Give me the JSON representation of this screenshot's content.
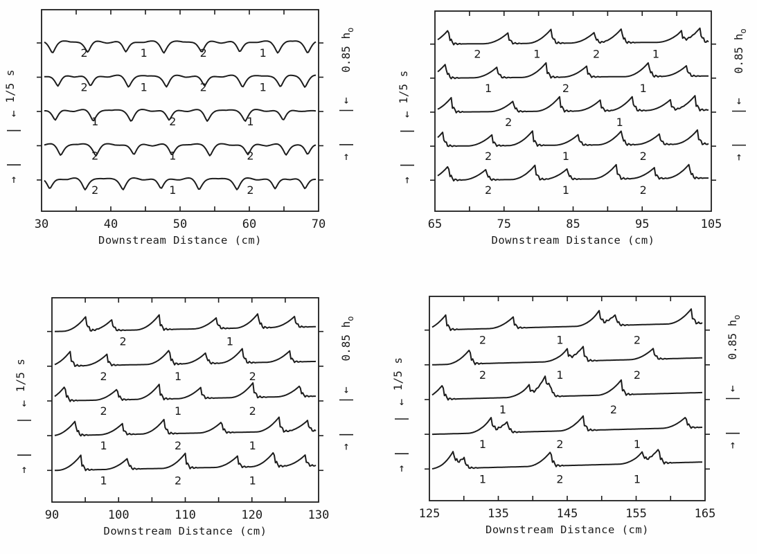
{
  "chart_data": [
    {
      "type": "line",
      "title": "",
      "xlabel": "Downstream Distance (cm)",
      "xlim": [
        30,
        70
      ],
      "x_ticks": [
        "30",
        "40",
        "50",
        "60",
        "70"
      ],
      "time_scale_label": "1/5 s",
      "height_scale_label": "0.85 h",
      "height_scale_sub": "o",
      "wave_labels": [
        [
          "2",
          "1",
          "2",
          "1"
        ],
        [
          "2",
          "1",
          "2",
          "1"
        ],
        [
          "1",
          "2",
          "1"
        ],
        [
          "2",
          "1",
          "2"
        ],
        [
          "2",
          "1",
          "2"
        ]
      ]
    },
    {
      "type": "line",
      "title": "",
      "xlabel": "Downstream Distance (cm)",
      "xlim": [
        65,
        105
      ],
      "x_ticks": [
        "65",
        "75",
        "85",
        "95",
        "105"
      ],
      "time_scale_label": "1/5 s",
      "height_scale_label": "0.85 h",
      "height_scale_sub": "o",
      "wave_labels": [
        [
          "2",
          "1",
          "2",
          "1"
        ],
        [
          "1",
          "2",
          "1"
        ],
        [
          "2",
          "1"
        ],
        [
          "2",
          "1",
          "2"
        ],
        [
          "2",
          "1",
          "2"
        ]
      ]
    },
    {
      "type": "line",
      "title": "",
      "xlabel": "Downstream Distance (cm)",
      "xlim": [
        90,
        130
      ],
      "x_ticks": [
        "90",
        "100",
        "110",
        "120",
        "130"
      ],
      "time_scale_label": "1/5 s",
      "height_scale_label": "0.85 h",
      "height_scale_sub": "o",
      "wave_labels": [
        [
          "2",
          "1"
        ],
        [
          "2",
          "1",
          "2"
        ],
        [
          "2",
          "1",
          "2"
        ],
        [
          "1",
          "2",
          "1"
        ],
        [
          "1",
          "2",
          "1"
        ]
      ]
    },
    {
      "type": "line",
      "title": "",
      "xlabel": "Downstream Distance (cm)",
      "xlim": [
        125,
        165
      ],
      "x_ticks": [
        "125",
        "135",
        "145",
        "155",
        "165"
      ],
      "time_scale_label": "1/5 s",
      "height_scale_label": "0.85 h",
      "height_scale_sub": "o",
      "wave_labels": [
        [
          "2",
          "1",
          "2"
        ],
        [
          "2",
          "1",
          "2"
        ],
        [
          "1",
          "2"
        ],
        [
          "1",
          "2",
          "1"
        ],
        [
          "1",
          "2",
          "1"
        ]
      ]
    }
  ]
}
